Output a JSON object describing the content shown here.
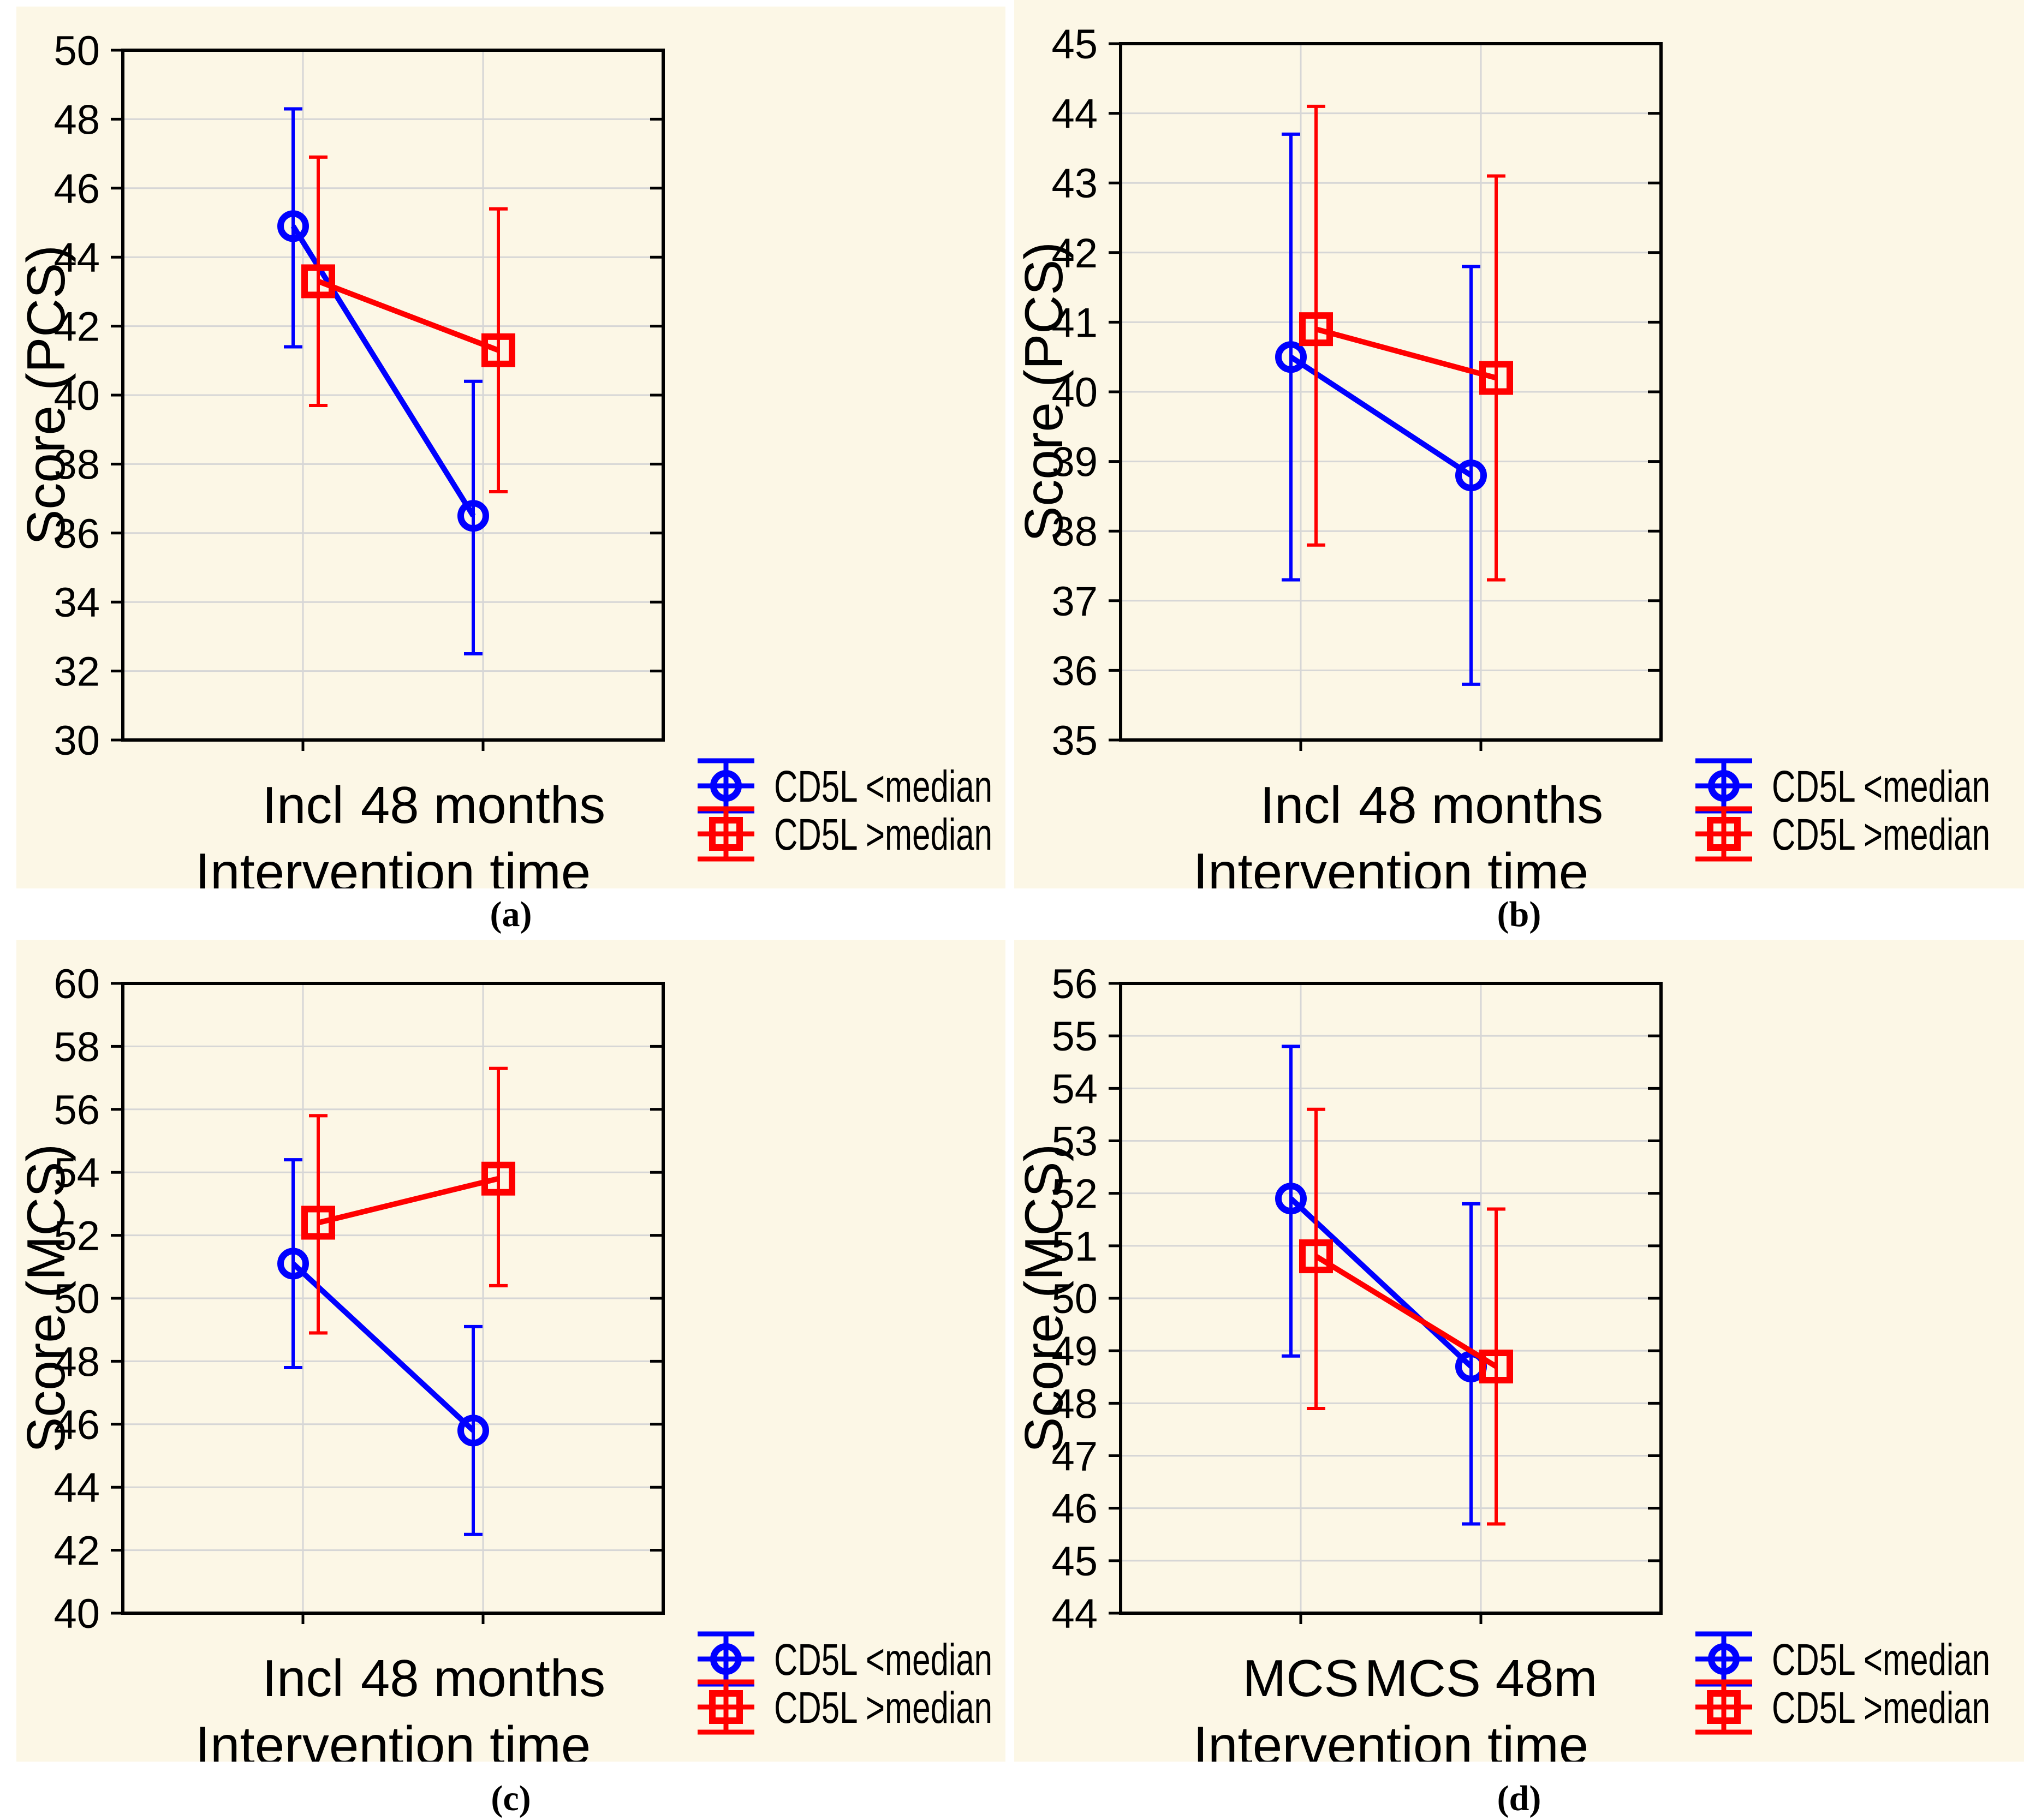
{
  "figure": {
    "background": "#FFFFFF",
    "panel_background": "#FCF7E6",
    "grid_color": "#D6D6D6",
    "axis_color": "#000000",
    "accent_blue": "#0000FF",
    "accent_red": "#FF0000"
  },
  "chart_data": [
    {
      "type": "line",
      "panel": "a",
      "caption": "(a)",
      "xlabel": "Intervention time",
      "ylabel": "Score (PCS)",
      "categories": [
        "Incl",
        "48 months"
      ],
      "ylim": [
        30,
        50
      ],
      "ytick_step": 2,
      "grid": true,
      "legend_position": "bottom-right",
      "series": [
        {
          "name": "CD5L <median",
          "color": "#0000FF",
          "marker": "circle",
          "values": [
            44.9,
            36.5
          ],
          "ci_low": [
            41.4,
            32.5
          ],
          "ci_high": [
            48.3,
            40.4
          ]
        },
        {
          "name": "CD5L >median",
          "color": "#FF0000",
          "marker": "square",
          "values": [
            43.3,
            41.3
          ],
          "ci_low": [
            39.7,
            37.2
          ],
          "ci_high": [
            46.9,
            45.4
          ]
        }
      ]
    },
    {
      "type": "line",
      "panel": "b",
      "caption": "(b)",
      "xlabel": "Intervention time",
      "ylabel": "Score (PCS)",
      "categories": [
        "Incl",
        "48 months"
      ],
      "ylim": [
        35,
        45
      ],
      "ytick_step": 1,
      "grid": true,
      "legend_position": "bottom-right",
      "series": [
        {
          "name": "CD5L <median",
          "color": "#0000FF",
          "marker": "circle",
          "values": [
            40.5,
            38.8
          ],
          "ci_low": [
            37.3,
            35.8
          ],
          "ci_high": [
            43.7,
            41.8
          ]
        },
        {
          "name": "CD5L >median",
          "color": "#FF0000",
          "marker": "square",
          "values": [
            40.9,
            40.2
          ],
          "ci_low": [
            37.8,
            37.3
          ],
          "ci_high": [
            44.1,
            43.1
          ]
        }
      ]
    },
    {
      "type": "line",
      "panel": "c",
      "caption": "(c)",
      "xlabel": "Intervention time",
      "ylabel": "Score (MCS)",
      "categories": [
        "Incl",
        "48 months"
      ],
      "ylim": [
        40,
        60
      ],
      "ytick_step": 2,
      "grid": true,
      "legend_position": "bottom-right",
      "series": [
        {
          "name": "CD5L <median",
          "color": "#0000FF",
          "marker": "circle",
          "values": [
            51.1,
            45.8
          ],
          "ci_low": [
            47.8,
            42.5
          ],
          "ci_high": [
            54.4,
            49.1
          ]
        },
        {
          "name": "CD5L >median",
          "color": "#FF0000",
          "marker": "square",
          "values": [
            52.4,
            53.8
          ],
          "ci_low": [
            48.9,
            50.4
          ],
          "ci_high": [
            55.8,
            57.3
          ]
        }
      ]
    },
    {
      "type": "line",
      "panel": "d",
      "caption": "(d)",
      "xlabel": "Intervention time",
      "ylabel": "Score (MCS)",
      "categories": [
        "MCS",
        "MCS 48m"
      ],
      "ylim": [
        44,
        56
      ],
      "ytick_step": 1,
      "grid": true,
      "legend_position": "bottom-right",
      "series": [
        {
          "name": "CD5L <median",
          "color": "#0000FF",
          "marker": "circle",
          "values": [
            51.9,
            48.7
          ],
          "ci_low": [
            48.9,
            45.7
          ],
          "ci_high": [
            54.8,
            51.8
          ]
        },
        {
          "name": "CD5L >median",
          "color": "#FF0000",
          "marker": "square",
          "values": [
            50.8,
            48.7
          ],
          "ci_low": [
            47.9,
            45.7
          ],
          "ci_high": [
            53.6,
            51.7
          ]
        }
      ]
    }
  ]
}
